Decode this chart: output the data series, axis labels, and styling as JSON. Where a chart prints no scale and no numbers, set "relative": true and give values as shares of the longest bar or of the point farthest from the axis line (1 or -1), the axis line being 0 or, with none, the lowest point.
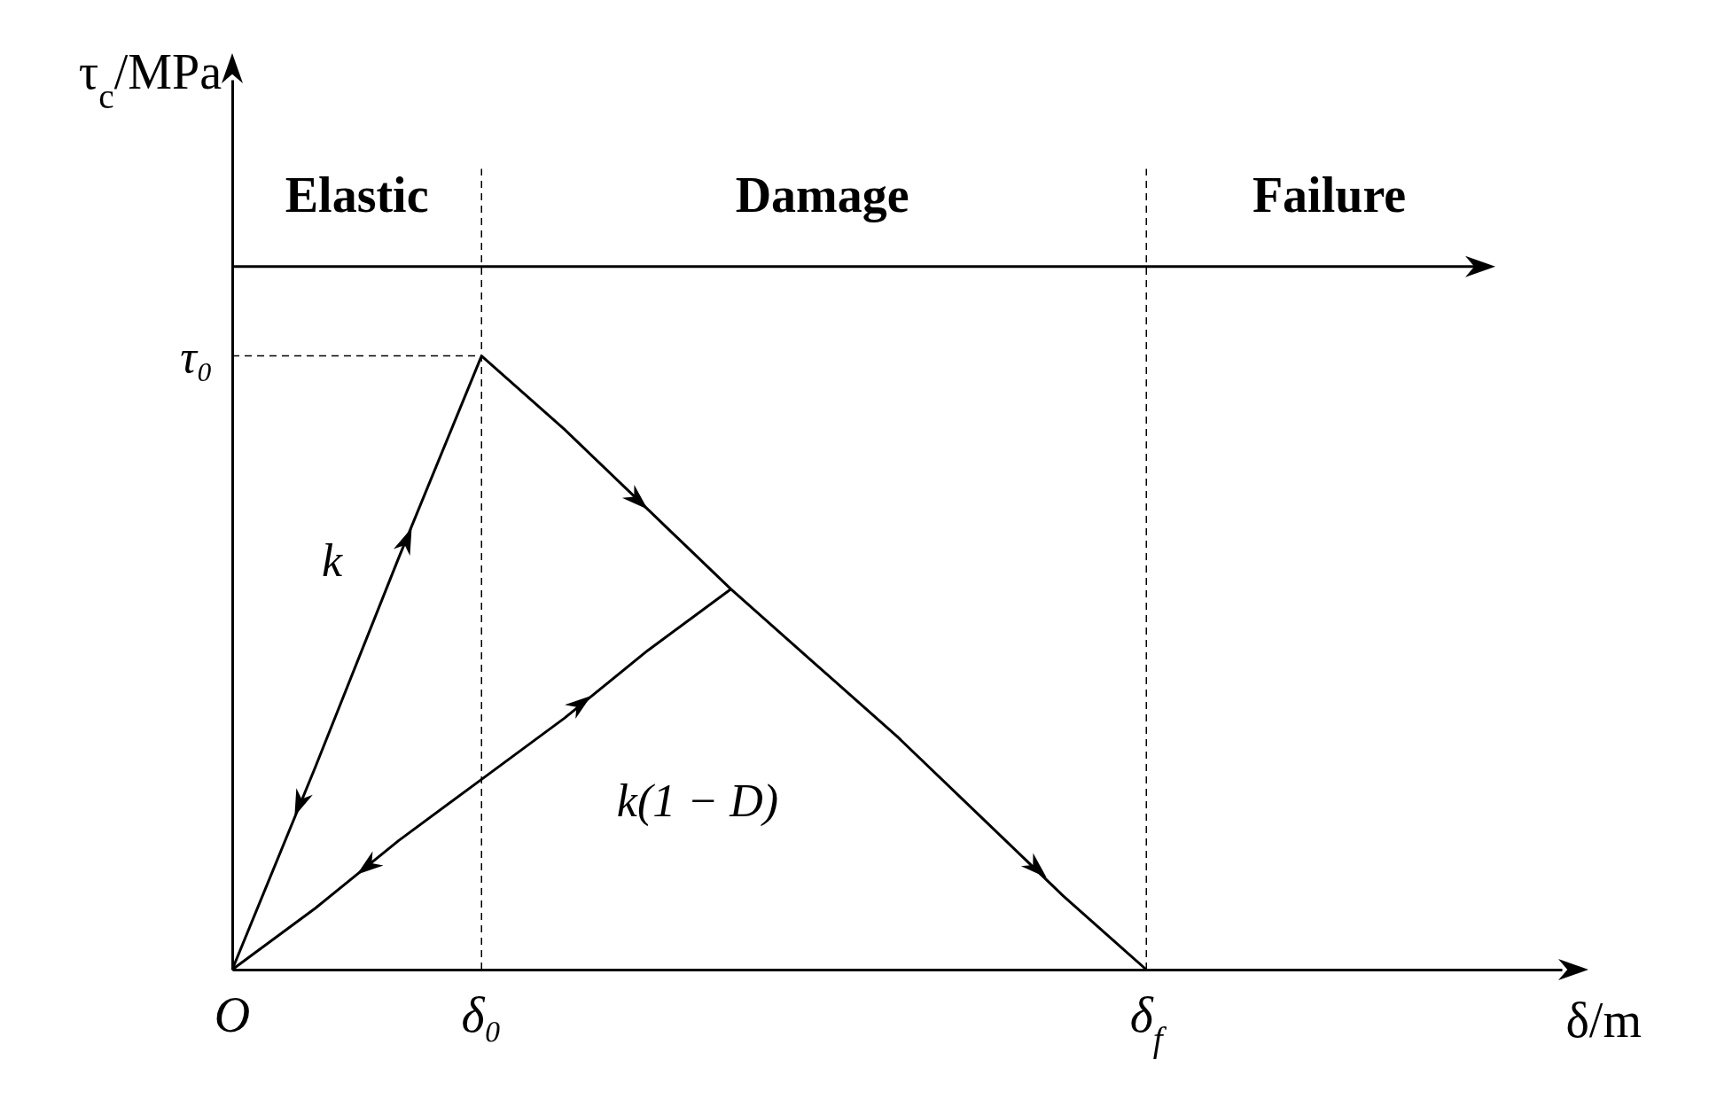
{
  "chart_data": {
    "type": "line",
    "relative": true,
    "xlabel": "δ/m",
    "ylabel": "τ$_{c}$/MPa",
    "categories": [
      "O",
      null,
      null,
      "δ₀",
      null,
      null,
      null,
      null,
      null,
      null,
      null,
      "δ$_{f}$",
      null,
      null,
      null,
      null,
      null
    ],
    "series": [
      {
        "color": "#000000",
        "values": [
          0,
          0.33,
          0.67,
          1,
          0.88,
          0.75,
          0.62,
          0.5,
          0.38,
          0.25,
          0.12,
          0,
          null,
          null,
          null,
          null,
          null
        ]
      },
      {
        "color": "#000000",
        "values": [
          0,
          0.1,
          0.21,
          0.31,
          0.41,
          0.52,
          0.62,
          null,
          null,
          null,
          null,
          null,
          null,
          null,
          null,
          null,
          null
        ]
      }
    ],
    "ref_lines": [
      {
        "axis": "x",
        "value": "δ₀",
        "line_style": "dashed"
      },
      {
        "axis": "x",
        "value": "δ$_{f}$",
        "line_style": "dashed"
      },
      {
        "axis": "y",
        "value": 1,
        "label": "τ₀",
        "line_style": "dashed"
      }
    ],
    "annotations": [
      "Elastic",
      "Damage",
      "Failure",
      "k",
      "k(1 − D)"
    ]
  }
}
